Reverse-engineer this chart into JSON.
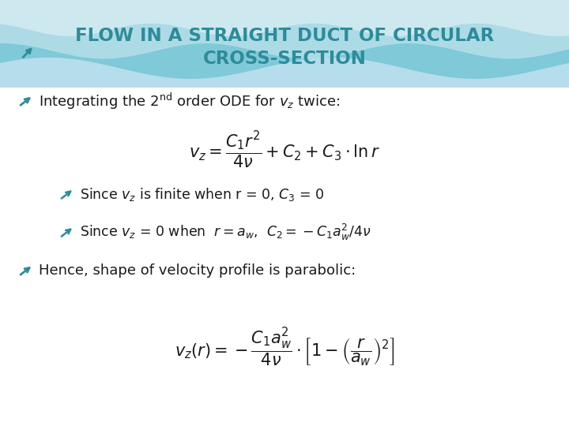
{
  "title_line1": "FLOW IN A STRAIGHT DUCT OF CIRCULAR",
  "title_line2": "CROSS-SECTION",
  "title_color": "#2E8B9A",
  "background_color": "#FFFFFF",
  "bullet_color": "#2E8B9A",
  "text_color": "#1a1a1a",
  "figsize": [
    7.2,
    5.4
  ],
  "dpi": 100
}
